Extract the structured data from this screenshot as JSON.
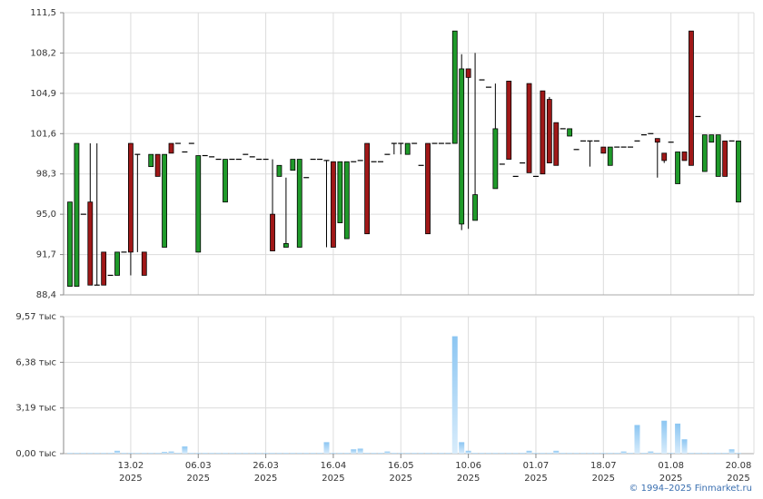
{
  "chart_data": [
    {
      "type": "candlestick",
      "up_color": "#1f9a2a",
      "down_color": "#a01818",
      "flat_color": "#000000",
      "ylim": [
        88.4,
        111.5
      ],
      "yticks": [
        {
          "value": 88.4,
          "label": "88,4"
        },
        {
          "value": 91.7,
          "label": "91,7"
        },
        {
          "value": 95.0,
          "label": "95,0"
        },
        {
          "value": 98.3,
          "label": "98,3"
        },
        {
          "value": 101.6,
          "label": "101,6"
        },
        {
          "value": 104.9,
          "label": "104,9"
        },
        {
          "value": 108.2,
          "label": "108,2"
        },
        {
          "value": 111.5,
          "label": "111,5"
        }
      ],
      "grid": true,
      "open": [
        89.1,
        89.1,
        95.0,
        96.0,
        89.2,
        91.9,
        90.0,
        90.0,
        91.9,
        100.8,
        99.9,
        91.9,
        98.9,
        99.9,
        92.3,
        100.8,
        100.8,
        100.1,
        100.8,
        91.9,
        99.8,
        99.7,
        99.5,
        96.0,
        99.5,
        99.5,
        99.9,
        99.7,
        99.5,
        99.5,
        95.0,
        98.1,
        92.3,
        98.6,
        92.3,
        98.0,
        99.5,
        99.5,
        99.4,
        99.3,
        94.3,
        93.0,
        99.3,
        99.4,
        100.8,
        99.3,
        99.3,
        99.9,
        100.8,
        100.8,
        99.9,
        100.8,
        99.0,
        100.8,
        100.8,
        100.8,
        100.8,
        100.8,
        94.2,
        106.9,
        94.5,
        106.0,
        105.4,
        97.1,
        99.1,
        105.9,
        98.1,
        99.2,
        105.7,
        98.1,
        105.1,
        104.4,
        102.5,
        102.0,
        101.4,
        100.3,
        101.0,
        101.0,
        101.0,
        100.5,
        99.0,
        100.5,
        100.5,
        100.5,
        101.0,
        101.5,
        101.6,
        101.2,
        100.0,
        100.9,
        97.5,
        100.1,
        110.0,
        103.0,
        98.5,
        100.9,
        98.1,
        101.0,
        101.0,
        96.0
      ],
      "high": [
        96.0,
        100.8,
        95.0,
        100.8,
        100.8,
        91.9,
        90.0,
        91.9,
        91.9,
        100.8,
        99.9,
        91.9,
        99.9,
        99.9,
        99.9,
        100.8,
        100.8,
        100.1,
        100.8,
        99.8,
        99.8,
        99.7,
        99.5,
        99.5,
        99.5,
        99.5,
        99.9,
        99.7,
        99.5,
        99.5,
        99.5,
        99.0,
        98.0,
        99.5,
        99.5,
        98.0,
        99.5,
        99.5,
        99.4,
        99.3,
        99.3,
        99.3,
        99.3,
        99.4,
        100.8,
        99.3,
        99.3,
        99.9,
        100.8,
        100.8,
        100.8,
        100.8,
        99.0,
        100.8,
        100.8,
        100.8,
        100.8,
        110.0,
        108.1,
        106.9,
        108.2,
        106.0,
        105.4,
        105.7,
        99.1,
        105.9,
        98.1,
        99.2,
        105.7,
        98.1,
        105.1,
        104.6,
        102.5,
        102.0,
        102.0,
        100.3,
        101.0,
        101.0,
        101.0,
        100.5,
        100.5,
        100.5,
        100.5,
        100.5,
        101.0,
        101.5,
        101.6,
        101.2,
        100.0,
        100.9,
        100.1,
        100.1,
        110.0,
        103.0,
        101.5,
        101.5,
        101.5,
        101.0,
        101.0,
        101.0
      ],
      "low": [
        89.1,
        89.1,
        95.0,
        89.2,
        89.2,
        89.2,
        90.0,
        90.0,
        91.9,
        90.0,
        91.9,
        90.0,
        98.9,
        98.1,
        92.3,
        100.0,
        100.8,
        100.1,
        100.8,
        91.9,
        99.8,
        99.7,
        99.5,
        96.0,
        99.5,
        99.5,
        99.9,
        99.7,
        99.5,
        99.5,
        92.0,
        98.1,
        92.3,
        98.6,
        92.3,
        98.0,
        99.5,
        99.5,
        92.3,
        92.3,
        94.3,
        93.0,
        99.3,
        99.4,
        93.4,
        99.3,
        99.3,
        99.9,
        99.9,
        99.9,
        99.9,
        100.8,
        99.0,
        93.4,
        100.8,
        100.8,
        100.8,
        100.8,
        93.7,
        93.8,
        94.5,
        106.0,
        105.4,
        97.1,
        99.1,
        99.5,
        98.1,
        99.2,
        98.4,
        98.1,
        98.3,
        99.2,
        99.0,
        102.0,
        101.4,
        100.3,
        101.0,
        98.9,
        101.0,
        100.0,
        99.0,
        100.5,
        100.5,
        100.5,
        101.0,
        101.5,
        101.6,
        98.0,
        99.2,
        100.9,
        97.5,
        99.4,
        99.0,
        103.0,
        98.5,
        100.9,
        98.1,
        98.1,
        101.0,
        96.0
      ],
      "close": [
        96.0,
        100.8,
        95.0,
        89.2,
        89.2,
        89.2,
        90.0,
        91.9,
        91.9,
        91.9,
        99.9,
        90.0,
        99.9,
        98.1,
        99.9,
        100.0,
        100.8,
        100.1,
        100.8,
        99.8,
        99.8,
        99.7,
        99.5,
        99.5,
        99.5,
        99.5,
        99.9,
        99.7,
        99.5,
        99.5,
        92.0,
        99.0,
        92.6,
        99.5,
        99.5,
        98.0,
        99.5,
        99.5,
        99.4,
        92.3,
        99.3,
        99.3,
        99.3,
        99.4,
        93.4,
        99.3,
        99.3,
        99.9,
        100.8,
        100.8,
        100.8,
        100.8,
        99.0,
        93.4,
        100.8,
        100.8,
        100.8,
        110.0,
        106.9,
        106.2,
        96.6,
        106.0,
        105.4,
        102.0,
        99.1,
        99.5,
        98.1,
        99.2,
        98.4,
        98.1,
        98.3,
        99.2,
        99.0,
        102.0,
        102.0,
        100.3,
        101.0,
        101.0,
        101.0,
        100.0,
        100.5,
        100.5,
        100.5,
        100.5,
        101.0,
        101.5,
        101.6,
        100.9,
        99.4,
        100.9,
        100.1,
        99.4,
        99.0,
        103.0,
        101.5,
        101.5,
        101.5,
        98.1,
        101.0,
        101.0
      ]
    },
    {
      "type": "bar",
      "color": "#9fd2f5",
      "ylim": [
        0,
        9.57
      ],
      "yticks": [
        {
          "value": 0,
          "label": "0,00 тыс"
        },
        {
          "value": 3.19,
          "label": "3,19 тыс"
        },
        {
          "value": 6.38,
          "label": "6,38 тыс"
        },
        {
          "value": 9.57,
          "label": "9,57 тыс"
        }
      ],
      "grid": true,
      "categories": [
        null,
        null,
        null,
        null,
        null,
        null,
        null,
        null,
        null,
        "13.02\n2025",
        null,
        null,
        null,
        null,
        null,
        null,
        null,
        null,
        null,
        "06.03\n2025",
        null,
        null,
        null,
        null,
        null,
        null,
        null,
        null,
        null,
        "26.03\n2025",
        null,
        null,
        null,
        null,
        null,
        null,
        null,
        null,
        null,
        "16.04\n2025",
        null,
        null,
        null,
        null,
        null,
        null,
        null,
        null,
        null,
        "16.05\n2025",
        null,
        null,
        null,
        null,
        null,
        null,
        null,
        null,
        null,
        "10.06\n2025",
        null,
        null,
        null,
        null,
        null,
        null,
        null,
        null,
        null,
        "01.07\n2025",
        null,
        null,
        null,
        null,
        null,
        null,
        null,
        null,
        null,
        "18.07\n2025",
        null,
        null,
        null,
        null,
        null,
        null,
        null,
        null,
        null,
        "01.08\n2025",
        null,
        null,
        null,
        null,
        null,
        null,
        null,
        null,
        null,
        "20.08\n2025"
      ],
      "values": [
        0.05,
        0.05,
        0.05,
        0.05,
        0.05,
        0.05,
        0.05,
        0.2,
        0.05,
        0.05,
        0.05,
        0.05,
        0.05,
        0.05,
        0.12,
        0.15,
        0.05,
        0.5,
        0.05,
        0.05,
        0.05,
        0.05,
        0.05,
        0.05,
        0.05,
        0.05,
        0.05,
        0.05,
        0.05,
        0.05,
        0.05,
        0.05,
        0.05,
        0.05,
        0.05,
        0.05,
        0.05,
        0.05,
        0.8,
        0.05,
        0.05,
        0.05,
        0.3,
        0.35,
        0.05,
        0.05,
        0.05,
        0.15,
        0.05,
        0.05,
        0.05,
        0.05,
        0.05,
        0.05,
        0.05,
        0.05,
        0.05,
        8.2,
        0.8,
        0.2,
        0.05,
        0.05,
        0.05,
        0.05,
        0.05,
        0.05,
        0.05,
        0.05,
        0.2,
        0.05,
        0.05,
        0.05,
        0.2,
        0.05,
        0.05,
        0.05,
        0.05,
        0.05,
        0.05,
        0.05,
        0.05,
        0.05,
        0.15,
        0.05,
        2.0,
        0.05,
        0.15,
        0.05,
        2.3,
        0.05,
        2.1,
        1.0,
        0.05,
        0.05,
        0.05,
        0.05,
        0.05,
        0.05,
        0.3,
        0.05
      ]
    }
  ],
  "footer": "© 1994–2025 Finmarket.ru"
}
